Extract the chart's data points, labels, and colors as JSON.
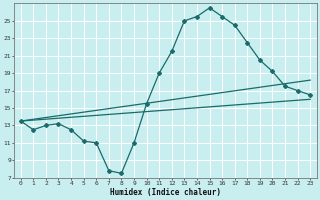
{
  "xlabel": "Humidex (Indice chaleur)",
  "bg_color": "#c8eef0",
  "grid_color": "#ffffff",
  "line_color": "#1a6b6b",
  "xmin": -0.5,
  "xmax": 23.5,
  "ymin": 7,
  "ymax": 27,
  "yticks": [
    7,
    9,
    11,
    13,
    15,
    17,
    19,
    21,
    23,
    25
  ],
  "xticks": [
    0,
    1,
    2,
    3,
    4,
    5,
    6,
    7,
    8,
    9,
    10,
    11,
    12,
    13,
    14,
    15,
    16,
    17,
    18,
    19,
    20,
    21,
    22,
    23
  ],
  "line1_x": [
    0,
    1,
    2,
    3,
    4,
    5,
    6,
    7,
    8,
    9,
    10,
    11,
    12,
    13,
    14,
    15,
    16,
    17,
    18,
    19,
    20,
    21,
    22,
    23
  ],
  "line1_y": [
    13.5,
    12.5,
    13.0,
    13.2,
    12.5,
    11.2,
    11.0,
    7.8,
    7.5,
    11.0,
    15.5,
    19.0,
    21.5,
    25.0,
    25.5,
    26.5,
    25.5,
    24.5,
    22.5,
    20.5,
    19.2,
    17.5,
    17.0,
    16.5
  ],
  "line2_x": [
    0,
    23
  ],
  "line2_y": [
    13.5,
    16.0
  ],
  "line3_x": [
    0,
    23
  ],
  "line3_y": [
    13.5,
    18.2
  ]
}
